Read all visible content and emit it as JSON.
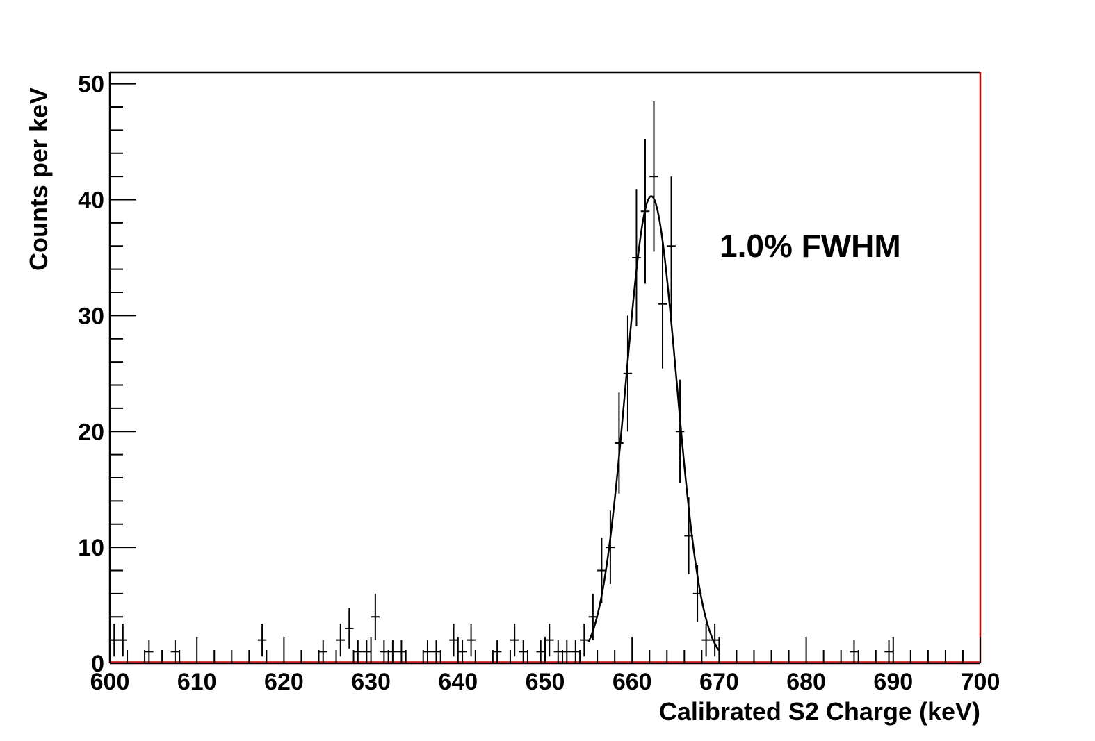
{
  "chart_data": {
    "type": "scatter",
    "title": "",
    "xlabel": "Calibrated S2 Charge (keV)",
    "ylabel": "Counts per keV",
    "xlim": [
      600,
      700
    ],
    "ylim": [
      0,
      51
    ],
    "x_ticks": [
      "600",
      "610",
      "620",
      "630",
      "640",
      "650",
      "660",
      "670",
      "680",
      "690",
      "700"
    ],
    "y_ticks": [
      "0",
      "10",
      "20",
      "30",
      "40",
      "50"
    ],
    "annotation": "1.0% FWHM",
    "grid": false,
    "legend": "none",
    "series": [
      {
        "type": "histogram-with-errors",
        "bin_width_kev": 1,
        "points": [
          [
            600.5,
            2
          ],
          [
            601.5,
            2
          ],
          [
            604.5,
            1
          ],
          [
            607.5,
            1
          ],
          [
            617.5,
            2
          ],
          [
            624.5,
            1
          ],
          [
            626.5,
            2
          ],
          [
            627.5,
            3
          ],
          [
            628.5,
            1
          ],
          [
            629.5,
            1
          ],
          [
            630.5,
            4
          ],
          [
            631.5,
            1
          ],
          [
            632.5,
            1
          ],
          [
            633.5,
            1
          ],
          [
            636.5,
            1
          ],
          [
            637.5,
            1
          ],
          [
            639.5,
            2
          ],
          [
            640.5,
            1
          ],
          [
            641.5,
            2
          ],
          [
            644.5,
            1
          ],
          [
            646.5,
            2
          ],
          [
            647.5,
            1
          ],
          [
            649.5,
            1
          ],
          [
            650.5,
            2
          ],
          [
            651.5,
            1
          ],
          [
            652.5,
            1
          ],
          [
            653.5,
            1
          ],
          [
            654.5,
            2
          ],
          [
            655.5,
            4
          ],
          [
            656.5,
            8
          ],
          [
            657.5,
            10
          ],
          [
            658.5,
            19
          ],
          [
            659.5,
            25
          ],
          [
            660.5,
            35
          ],
          [
            661.5,
            39
          ],
          [
            662.5,
            42
          ],
          [
            663.5,
            31
          ],
          [
            664.5,
            36
          ],
          [
            665.5,
            20
          ],
          [
            666.5,
            11
          ],
          [
            667.5,
            6
          ],
          [
            668.5,
            2
          ],
          [
            669.5,
            2
          ],
          [
            685.5,
            1
          ],
          [
            689.5,
            1
          ]
        ]
      },
      {
        "type": "gaussian-fit",
        "amplitude": 40.3,
        "mean": 662.2,
        "sigma": 2.9,
        "range": [
          655,
          670
        ]
      }
    ]
  },
  "colors": {
    "frame": "#000000",
    "frame_right_edge": "#cc0000",
    "data": "#000000",
    "baseline": "#cc0000"
  }
}
